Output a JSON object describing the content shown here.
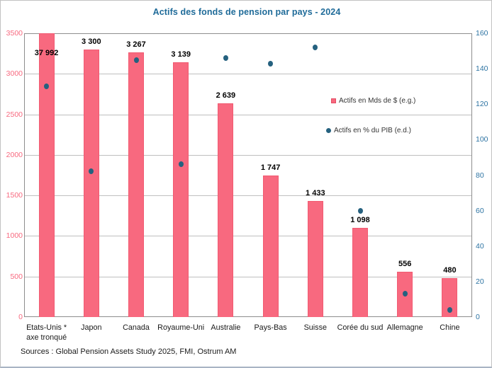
{
  "title": "Actifs des fonds de pension par pays - 2024",
  "source_line": "Sources : Global Pension Assets Study 2025, FMI, Ostrum AM",
  "legend": {
    "bars_label": "Actifs en Mds de $ (e.g.)",
    "dots_label": "Actifs en % du PIB (e.d.)"
  },
  "colors": {
    "bar": "#f8697f",
    "dot": "#25617f",
    "title": "#1f6b99",
    "left_axis_text": "#f8697f",
    "right_axis_text": "#2e74a3",
    "gridline": "#bfbfbf"
  },
  "chart_data": {
    "type": "bar",
    "subtype": "combo bar + scatter, dual axis",
    "title": "Actifs des fonds de pension par pays - 2024",
    "categories": [
      "Etats-Unis *",
      "Japon",
      "Canada",
      "Royaume-Uni",
      "Australie",
      "Pays-Bas",
      "Suisse",
      "Corée du sud",
      "Allemagne",
      "Chine"
    ],
    "category_footnote": {
      "index": 0,
      "text": "axe tronqué"
    },
    "series": [
      {
        "name": "Actifs en Mds de $ (e.g.)",
        "type": "bar",
        "axis": "left",
        "values": [
          37992,
          3300,
          3267,
          3139,
          2639,
          1747,
          1433,
          1098,
          556,
          480
        ],
        "value_labels": [
          "37 992",
          "3 300",
          "3 267",
          "3 139",
          "2 639",
          "1 747",
          "1 433",
          "1 098",
          "556",
          "480"
        ]
      },
      {
        "name": "Actifs en % du PIB (e.d.)",
        "type": "scatter",
        "axis": "right",
        "values": [
          130,
          82,
          145,
          86,
          146,
          143,
          152,
          60,
          13,
          4
        ]
      }
    ],
    "left_axis": {
      "min": 0,
      "max": 3500,
      "step": 500
    },
    "right_axis": {
      "min": 0,
      "max": 160,
      "step": 20
    },
    "grid": "horizontal, every 500 units of left axis",
    "legend_position": "inside plot, middle right",
    "note": "First bar (Etats-Unis) truncated at axis max 3500"
  }
}
